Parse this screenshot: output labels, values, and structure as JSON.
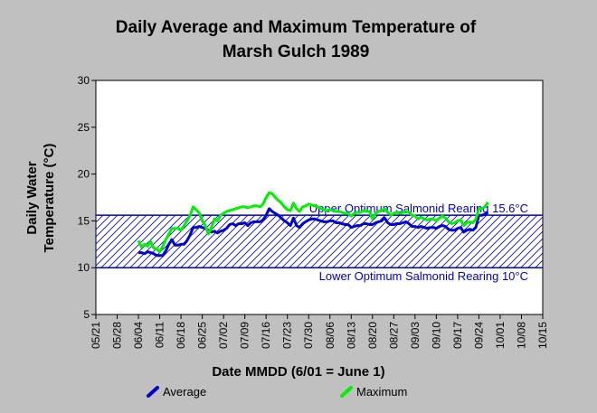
{
  "chart_data": {
    "type": "line",
    "title_line1": "Daily Average and Maximum Temperature of",
    "title_line2": "Marsh Gulch 1989",
    "xlabel": "Date MMDD (6/01 = June 1)",
    "ylabel_line1": "Daily Water",
    "ylabel_line2": "Temperature (°C)",
    "ylim": [
      5,
      30
    ],
    "yticks": [
      5,
      10,
      15,
      20,
      25,
      30
    ],
    "xticks": [
      "05/21",
      "05/28",
      "06/04",
      "06/11",
      "06/18",
      "06/25",
      "07/02",
      "07/09",
      "07/16",
      "07/23",
      "07/30",
      "08/06",
      "08/13",
      "08/20",
      "08/27",
      "09/03",
      "09/10",
      "09/17",
      "09/24",
      "10/01",
      "10/08",
      "10/15"
    ],
    "grid": false,
    "legend_position": "bottom",
    "reference_lines": [
      {
        "label": "Upper Optimum Salmonid Rearing 15.6°C",
        "value": 15.6
      },
      {
        "label": "Lower Optimum Salmonid Rearing 10°C",
        "value": 10
      }
    ],
    "x_start_date": "05/21",
    "series": [
      {
        "name": "Average",
        "color": "#0000cc",
        "x": [
          "06/04",
          "06/05",
          "06/06",
          "06/07",
          "06/08",
          "06/09",
          "06/10",
          "06/11",
          "06/12",
          "06/13",
          "06/14",
          "06/15",
          "06/16",
          "06/17",
          "06/18",
          "06/19",
          "06/20",
          "06/21",
          "06/22",
          "06/23",
          "06/24",
          "06/25",
          "06/26",
          "06/27",
          "06/28",
          "06/29",
          "06/30",
          "07/01",
          "07/02",
          "07/03",
          "07/04",
          "07/05",
          "07/06",
          "07/07",
          "07/08",
          "07/09",
          "07/10",
          "07/11",
          "07/12",
          "07/13",
          "07/14",
          "07/15",
          "07/16",
          "07/17",
          "07/18",
          "07/19",
          "07/20",
          "07/21",
          "07/22",
          "07/23",
          "07/24",
          "07/25",
          "07/26",
          "07/27",
          "07/28",
          "07/29",
          "07/30",
          "07/31",
          "08/01",
          "08/02",
          "08/03",
          "08/04",
          "08/05",
          "08/06",
          "08/07",
          "08/08",
          "08/09",
          "08/10",
          "08/11",
          "08/12",
          "08/13",
          "08/14",
          "08/15",
          "08/16",
          "08/17",
          "08/18",
          "08/19",
          "08/20",
          "08/21",
          "08/22",
          "08/23",
          "08/24",
          "08/25",
          "08/26",
          "08/27",
          "08/28",
          "08/29",
          "08/30",
          "08/31",
          "09/01",
          "09/02",
          "09/03",
          "09/04",
          "09/05",
          "09/06",
          "09/07",
          "09/08",
          "09/09",
          "09/10",
          "09/11",
          "09/12",
          "09/13",
          "09/14",
          "09/15",
          "09/16",
          "09/17",
          "09/18",
          "09/19",
          "09/20",
          "09/21",
          "09/22",
          "09/23",
          "09/24",
          "09/25",
          "09/26",
          "09/27"
        ],
        "values": [
          11.6,
          11.6,
          11.5,
          11.7,
          11.6,
          11.5,
          11.3,
          11.3,
          11.3,
          11.8,
          12.5,
          13.0,
          12.4,
          12.4,
          12.5,
          12.5,
          12.9,
          13.5,
          14.3,
          14.3,
          14.4,
          14.3,
          14.2,
          14.0,
          13.8,
          13.9,
          13.7,
          13.9,
          14.0,
          14.2,
          14.6,
          14.7,
          14.5,
          14.7,
          14.7,
          14.8,
          14.5,
          14.8,
          14.9,
          14.9,
          14.9,
          15.1,
          15.6,
          16.3,
          16.0,
          15.8,
          15.6,
          15.3,
          15.0,
          14.8,
          14.5,
          15.3,
          14.5,
          14.3,
          14.7,
          14.9,
          15.1,
          15.2,
          15.2,
          15.1,
          15.0,
          14.9,
          14.9,
          15.0,
          15.0,
          14.8,
          14.8,
          14.7,
          14.6,
          14.6,
          14.3,
          14.4,
          14.5,
          14.5,
          14.7,
          14.7,
          14.6,
          14.6,
          14.8,
          14.9,
          15.0,
          15.3,
          14.8,
          14.6,
          14.6,
          14.7,
          14.7,
          14.8,
          14.9,
          14.7,
          14.4,
          14.4,
          14.3,
          14.4,
          14.3,
          14.2,
          14.3,
          14.3,
          14.2,
          14.4,
          14.5,
          14.4,
          14.1,
          14.0,
          14.0,
          14.2,
          14.3,
          13.8,
          14.0,
          14.1,
          14.0,
          14.3,
          15.6,
          15.6,
          15.7,
          15.9
        ]
      },
      {
        "name": "Maximum",
        "color": "#00ee00",
        "x": [
          "06/04",
          "06/05",
          "06/06",
          "06/07",
          "06/08",
          "06/09",
          "06/10",
          "06/11",
          "06/12",
          "06/13",
          "06/14",
          "06/15",
          "06/16",
          "06/17",
          "06/18",
          "06/19",
          "06/20",
          "06/21",
          "06/22",
          "06/23",
          "06/24",
          "06/25",
          "06/26",
          "06/27",
          "06/28",
          "06/29",
          "06/30",
          "07/01",
          "07/02",
          "07/03",
          "07/04",
          "07/05",
          "07/06",
          "07/07",
          "07/08",
          "07/09",
          "07/10",
          "07/11",
          "07/12",
          "07/13",
          "07/14",
          "07/15",
          "07/16",
          "07/17",
          "07/18",
          "07/19",
          "07/20",
          "07/21",
          "07/22",
          "07/23",
          "07/24",
          "07/25",
          "07/26",
          "07/27",
          "07/28",
          "07/29",
          "07/30",
          "07/31",
          "08/01",
          "08/02",
          "08/03",
          "08/04",
          "08/05",
          "08/06",
          "08/07",
          "08/08",
          "08/09",
          "08/10",
          "08/11",
          "08/12",
          "08/13",
          "08/14",
          "08/15",
          "08/16",
          "08/17",
          "08/18",
          "08/19",
          "08/20",
          "08/21",
          "08/22",
          "08/23",
          "08/24",
          "08/25",
          "08/26",
          "08/27",
          "08/28",
          "08/29",
          "08/30",
          "08/31",
          "09/01",
          "09/02",
          "09/03",
          "09/04",
          "09/05",
          "09/06",
          "09/07",
          "09/08",
          "09/09",
          "09/10",
          "09/11",
          "09/12",
          "09/13",
          "09/14",
          "09/15",
          "09/16",
          "09/17",
          "09/18",
          "09/19",
          "09/20",
          "09/21",
          "09/22",
          "09/23",
          "09/24",
          "09/25",
          "09/26",
          "09/27"
        ],
        "values": [
          12.9,
          12.2,
          12.5,
          12.3,
          12.8,
          12.1,
          12.0,
          11.7,
          12.3,
          13.0,
          13.6,
          14.2,
          14.2,
          14.2,
          14.0,
          14.5,
          15.0,
          15.6,
          16.5,
          16.2,
          15.8,
          15.0,
          14.5,
          13.6,
          14.3,
          15.2,
          15.0,
          15.6,
          15.8,
          16.0,
          16.1,
          16.2,
          16.3,
          16.4,
          16.5,
          16.5,
          16.4,
          16.5,
          16.6,
          16.6,
          16.5,
          16.8,
          17.5,
          18.0,
          17.9,
          17.5,
          17.2,
          16.9,
          16.5,
          16.2,
          16.1,
          16.9,
          16.3,
          16.0,
          16.5,
          16.6,
          16.8,
          16.7,
          16.6,
          16.5,
          16.3,
          16.2,
          16.1,
          16.2,
          16.1,
          16.0,
          16.0,
          15.9,
          15.8,
          15.8,
          15.5,
          15.8,
          15.9,
          15.9,
          16.1,
          16.0,
          16.0,
          15.2,
          15.8,
          16.0,
          16.1,
          16.3,
          15.9,
          15.6,
          15.8,
          15.9,
          15.8,
          15.9,
          16.0,
          15.9,
          15.6,
          15.5,
          15.2,
          15.4,
          15.2,
          15.1,
          15.2,
          15.2,
          15.0,
          15.3,
          15.5,
          15.3,
          14.9,
          14.7,
          14.8,
          15.0,
          15.1,
          14.5,
          14.8,
          14.9,
          14.8,
          15.2,
          16.3,
          16.3,
          16.5,
          17.0
        ]
      }
    ]
  }
}
